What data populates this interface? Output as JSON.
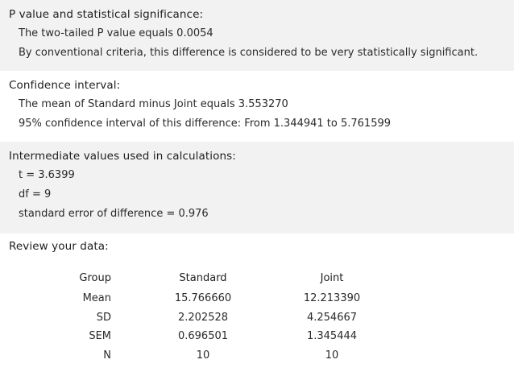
{
  "p_value": {
    "heading": "P value and statistical significance:",
    "lines": [
      "The two-tailed P value equals 0.0054",
      "By conventional criteria, this difference is considered to be very statistically significant."
    ]
  },
  "confidence": {
    "heading": "Confidence interval:",
    "lines": [
      "The mean of Standard minus Joint equals 3.553270",
      "95% confidence interval of this difference: From 1.344941 to 5.761599"
    ]
  },
  "intermediate": {
    "heading": "Intermediate values used in calculations:",
    "lines": [
      "t = 3.6399",
      "df = 9",
      "standard error of difference = 0.976"
    ]
  },
  "review": {
    "heading": "Review your data:"
  },
  "table": {
    "headers": [
      "Group",
      "Standard",
      "Joint"
    ],
    "rows": [
      [
        "Mean",
        "15.766660",
        "12.213390"
      ],
      [
        "SD",
        "2.202528",
        "4.254667"
      ],
      [
        "SEM",
        "0.696501",
        "1.345444"
      ],
      [
        "N",
        "10",
        "10"
      ]
    ]
  },
  "colors": {
    "band_background": "#f2f2f2",
    "page_background": "#ffffff",
    "text": "#222222"
  }
}
